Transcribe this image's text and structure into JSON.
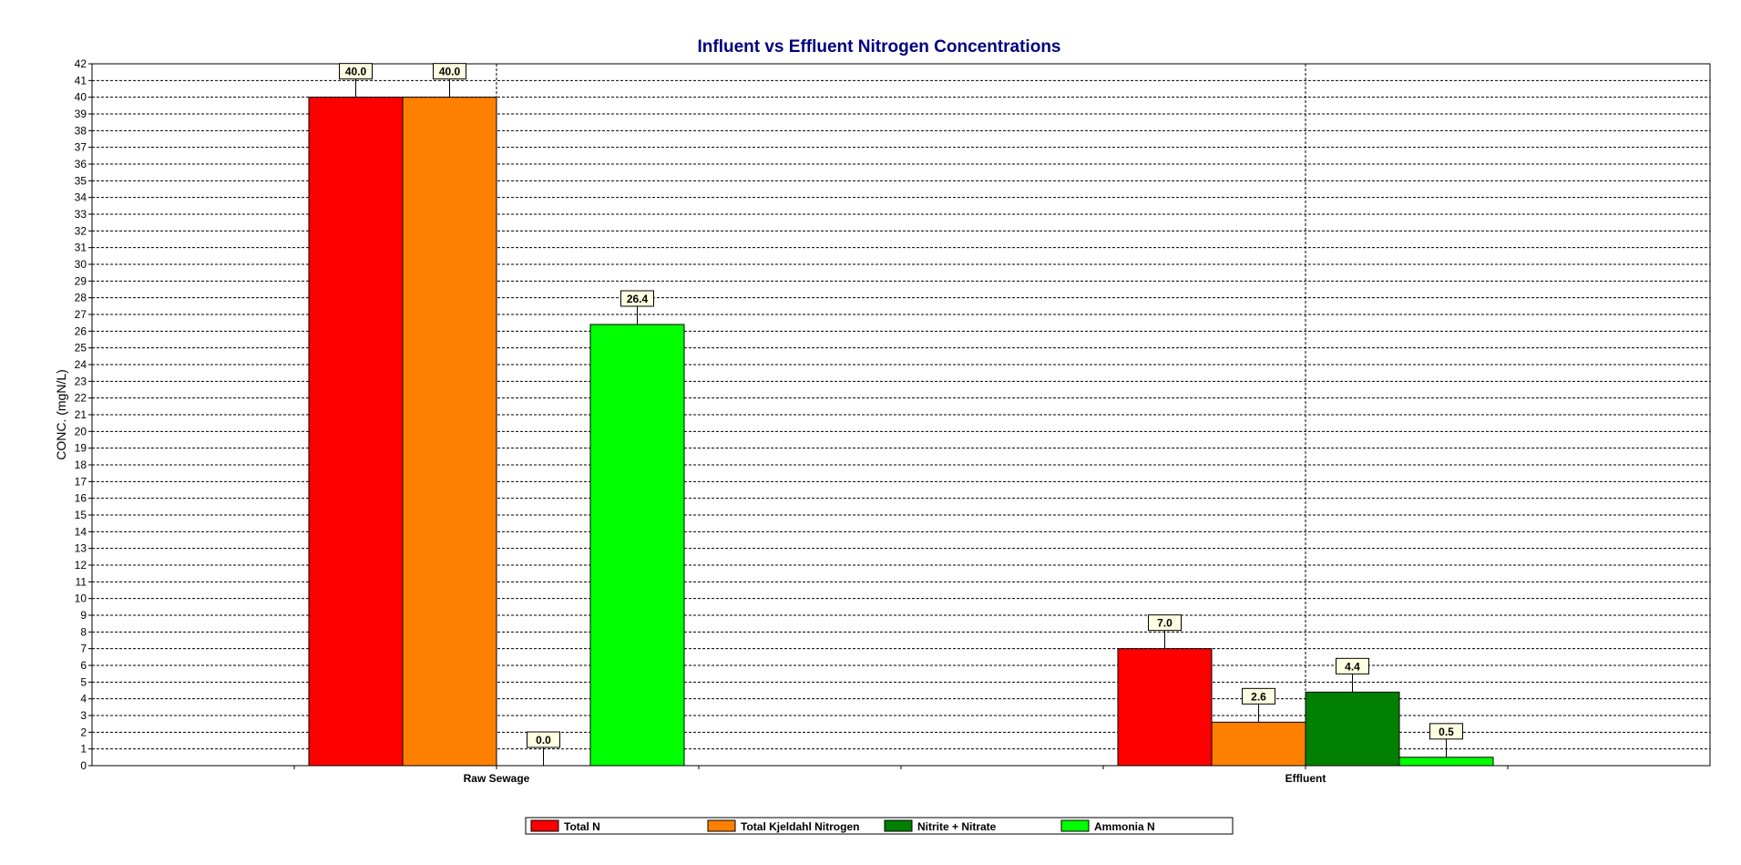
{
  "chart_data": {
    "type": "bar",
    "title": "Influent vs Effluent Nitrogen Concentrations",
    "xlabel": "",
    "ylabel": "CONC. (mgN/L)",
    "ylim": [
      0,
      42
    ],
    "ytick_step": 1,
    "grid": true,
    "legend_position": "bottom-center",
    "categories": [
      "Raw Sewage",
      "Effluent"
    ],
    "series": [
      {
        "name": "Total N",
        "color": "#ff0000",
        "values": [
          40.0,
          7.0
        ],
        "labels": [
          "40.0",
          "7.0"
        ]
      },
      {
        "name": "Total Kjeldahl Nitrogen",
        "color": "#ff8000",
        "values": [
          40.0,
          2.6
        ],
        "labels": [
          "40.0",
          "2.6"
        ]
      },
      {
        "name": "Nitrite + Nitrate",
        "color": "#008000",
        "values": [
          0.0,
          4.4
        ],
        "labels": [
          "0.0",
          "4.4"
        ]
      },
      {
        "name": "Ammonia N",
        "color": "#00ff00",
        "values": [
          26.4,
          0.5
        ],
        "labels": [
          "26.4",
          "0.5"
        ]
      }
    ],
    "colors": {
      "title": "#000080",
      "text": "#000000",
      "label_box_fill": "#ffffe1",
      "grid": "#000000"
    }
  }
}
